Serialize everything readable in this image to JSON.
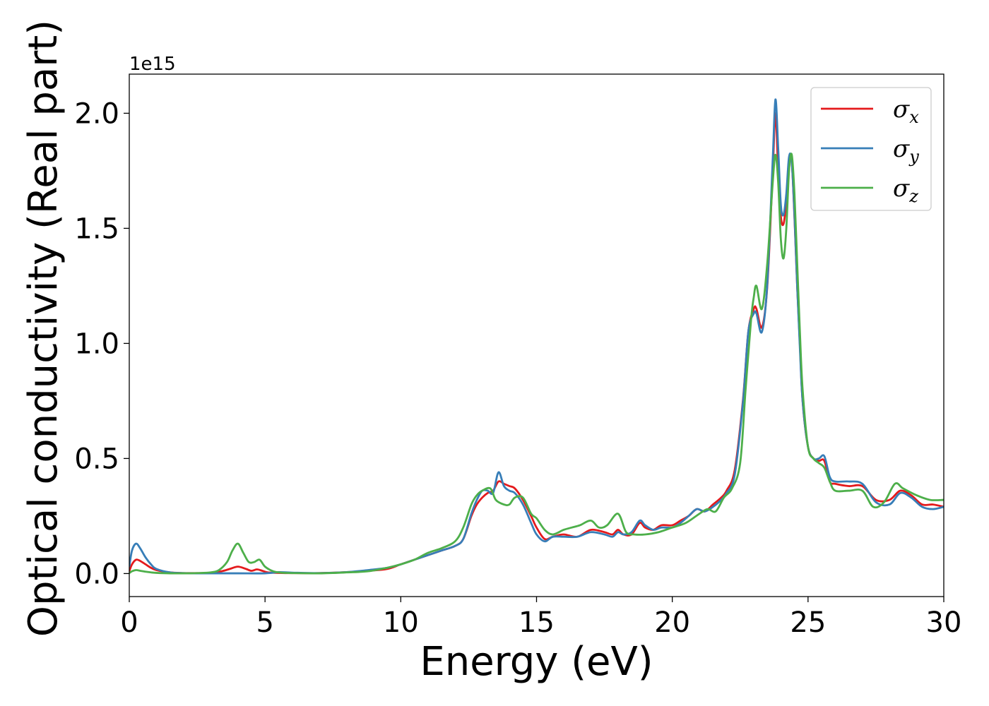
{
  "chart_data": {
    "type": "line",
    "xlabel": "Energy (eV)",
    "ylabel": "Optical conductivity (Real part)",
    "y_offset_text": "1e15",
    "xlim": [
      0,
      30
    ],
    "ylim": [
      -0.1,
      2.17
    ],
    "x_ticks": [
      0,
      5,
      10,
      15,
      20,
      25,
      30
    ],
    "x_tick_labels": [
      "0",
      "5",
      "10",
      "15",
      "20",
      "25",
      "30"
    ],
    "y_ticks": [
      0.0,
      0.5,
      1.0,
      1.5,
      2.0
    ],
    "y_tick_labels": [
      "0.0",
      "0.5",
      "1.0",
      "1.5",
      "2.0"
    ],
    "grid": false,
    "legend_position": "top-right",
    "series": [
      {
        "name": "σ",
        "subscript": "x",
        "color": "#e41a1c",
        "x": [
          0,
          0.1,
          0.25,
          0.4,
          0.6,
          0.8,
          1.0,
          1.5,
          2.0,
          2.5,
          3.0,
          3.4,
          3.7,
          4.0,
          4.3,
          4.5,
          4.7,
          4.9,
          5.1,
          5.5,
          6.0,
          7.0,
          8.0,
          8.8,
          9.5,
          10.0,
          10.5,
          11.0,
          11.5,
          12.0,
          12.3,
          12.6,
          12.8,
          13.0,
          13.2,
          13.4,
          13.6,
          13.8,
          14.0,
          14.2,
          14.5,
          14.8,
          15.0,
          15.3,
          15.6,
          16.0,
          16.5,
          17.0,
          17.5,
          17.8,
          18.0,
          18.2,
          18.5,
          18.8,
          19.0,
          19.3,
          19.6,
          20.0,
          20.3,
          20.6,
          20.9,
          21.2,
          21.5,
          21.8,
          22.0,
          22.3,
          22.6,
          22.8,
          23.0,
          23.1,
          23.3,
          23.5,
          23.7,
          23.8,
          23.9,
          24.0,
          24.1,
          24.2,
          24.3,
          24.4,
          24.5,
          24.6,
          24.7,
          24.8,
          25.0,
          25.2,
          25.4,
          25.6,
          25.8,
          26.0,
          26.5,
          27.0,
          27.5,
          28.0,
          28.4,
          28.8,
          29.2,
          29.6,
          30.0
        ],
        "y": [
          0.01,
          0.04,
          0.06,
          0.055,
          0.04,
          0.025,
          0.015,
          0.005,
          0.002,
          0.002,
          0.003,
          0.01,
          0.02,
          0.03,
          0.02,
          0.012,
          0.018,
          0.012,
          0.005,
          0.003,
          0.002,
          0.002,
          0.006,
          0.012,
          0.02,
          0.04,
          0.06,
          0.08,
          0.1,
          0.12,
          0.15,
          0.25,
          0.3,
          0.33,
          0.35,
          0.36,
          0.4,
          0.39,
          0.38,
          0.37,
          0.32,
          0.25,
          0.2,
          0.15,
          0.16,
          0.17,
          0.16,
          0.19,
          0.18,
          0.17,
          0.19,
          0.17,
          0.17,
          0.22,
          0.2,
          0.19,
          0.21,
          0.21,
          0.23,
          0.25,
          0.28,
          0.27,
          0.3,
          0.33,
          0.36,
          0.45,
          0.75,
          1.05,
          1.15,
          1.15,
          1.07,
          1.25,
          1.75,
          2.0,
          1.75,
          1.55,
          1.52,
          1.62,
          1.8,
          1.79,
          1.55,
          1.25,
          1.0,
          0.75,
          0.55,
          0.5,
          0.49,
          0.49,
          0.4,
          0.39,
          0.38,
          0.38,
          0.32,
          0.32,
          0.36,
          0.34,
          0.3,
          0.3,
          0.29
        ]
      },
      {
        "name": "σ",
        "subscript": "y",
        "color": "#377eb8",
        "x": [
          0,
          0.1,
          0.25,
          0.4,
          0.6,
          0.8,
          1.0,
          1.5,
          2.0,
          2.5,
          3.0,
          4.0,
          5.0,
          5.5,
          6.0,
          7.0,
          8.0,
          8.8,
          9.5,
          10.0,
          10.5,
          11.0,
          11.5,
          12.0,
          12.3,
          12.6,
          12.8,
          13.0,
          13.2,
          13.4,
          13.6,
          13.8,
          14.0,
          14.2,
          14.5,
          14.8,
          15.0,
          15.3,
          15.6,
          16.0,
          16.5,
          17.0,
          17.5,
          17.8,
          18.0,
          18.2,
          18.5,
          18.8,
          19.0,
          19.3,
          19.6,
          20.0,
          20.3,
          20.6,
          20.9,
          21.2,
          21.5,
          21.8,
          22.0,
          22.3,
          22.6,
          22.8,
          23.0,
          23.1,
          23.3,
          23.5,
          23.7,
          23.8,
          23.9,
          24.0,
          24.1,
          24.2,
          24.3,
          24.4,
          24.5,
          24.6,
          24.7,
          24.8,
          25.0,
          25.2,
          25.4,
          25.6,
          25.8,
          26.0,
          26.5,
          27.0,
          27.5,
          28.0,
          28.4,
          28.8,
          29.2,
          29.6,
          30.0
        ],
        "y": [
          0.03,
          0.1,
          0.13,
          0.11,
          0.07,
          0.04,
          0.02,
          0.005,
          0.002,
          0.001,
          0.001,
          0.001,
          0.001,
          0.006,
          0.004,
          0.002,
          0.006,
          0.015,
          0.025,
          0.04,
          0.06,
          0.08,
          0.1,
          0.12,
          0.15,
          0.26,
          0.32,
          0.36,
          0.36,
          0.35,
          0.44,
          0.38,
          0.36,
          0.35,
          0.3,
          0.22,
          0.17,
          0.14,
          0.16,
          0.16,
          0.16,
          0.18,
          0.17,
          0.16,
          0.18,
          0.17,
          0.18,
          0.23,
          0.21,
          0.19,
          0.2,
          0.2,
          0.22,
          0.25,
          0.28,
          0.27,
          0.29,
          0.32,
          0.35,
          0.43,
          0.74,
          1.05,
          1.13,
          1.13,
          1.05,
          1.26,
          1.8,
          2.06,
          1.85,
          1.6,
          1.56,
          1.65,
          1.81,
          1.79,
          1.56,
          1.25,
          0.98,
          0.75,
          0.55,
          0.5,
          0.5,
          0.51,
          0.42,
          0.4,
          0.4,
          0.39,
          0.31,
          0.3,
          0.35,
          0.33,
          0.29,
          0.28,
          0.29
        ]
      },
      {
        "name": "σ",
        "subscript": "z",
        "color": "#4daf4a",
        "x": [
          0,
          0.1,
          0.25,
          0.4,
          0.6,
          0.8,
          1.0,
          1.5,
          2.0,
          2.5,
          3.0,
          3.3,
          3.6,
          3.8,
          4.0,
          4.2,
          4.4,
          4.6,
          4.8,
          5.0,
          5.3,
          5.6,
          6.0,
          7.0,
          8.0,
          8.8,
          9.5,
          10.0,
          10.5,
          11.0,
          11.5,
          12.0,
          12.3,
          12.6,
          12.8,
          13.0,
          13.3,
          13.5,
          13.8,
          14.0,
          14.2,
          14.5,
          14.8,
          15.0,
          15.3,
          15.6,
          16.0,
          16.3,
          16.6,
          17.0,
          17.3,
          17.6,
          18.0,
          18.3,
          18.6,
          19.0,
          19.5,
          20.0,
          20.5,
          21.0,
          21.3,
          21.6,
          21.9,
          22.2,
          22.5,
          22.7,
          22.9,
          23.0,
          23.1,
          23.3,
          23.5,
          23.7,
          23.8,
          23.9,
          24.0,
          24.1,
          24.2,
          24.3,
          24.4,
          24.5,
          24.6,
          24.7,
          24.8,
          25.0,
          25.2,
          25.4,
          25.6,
          25.8,
          26.0,
          26.5,
          27.0,
          27.4,
          27.8,
          28.2,
          28.5,
          29.0,
          29.5,
          30.0
        ],
        "y": [
          0.002,
          0.01,
          0.015,
          0.012,
          0.008,
          0.005,
          0.003,
          0.001,
          0.001,
          0.002,
          0.005,
          0.015,
          0.05,
          0.1,
          0.13,
          0.09,
          0.05,
          0.05,
          0.06,
          0.03,
          0.01,
          0.004,
          0.002,
          0.001,
          0.005,
          0.01,
          0.025,
          0.04,
          0.06,
          0.09,
          0.11,
          0.14,
          0.2,
          0.3,
          0.34,
          0.36,
          0.37,
          0.32,
          0.3,
          0.3,
          0.33,
          0.33,
          0.26,
          0.24,
          0.19,
          0.17,
          0.19,
          0.2,
          0.21,
          0.23,
          0.2,
          0.21,
          0.26,
          0.18,
          0.17,
          0.17,
          0.18,
          0.2,
          0.22,
          0.26,
          0.28,
          0.27,
          0.33,
          0.37,
          0.48,
          0.8,
          1.1,
          1.2,
          1.25,
          1.15,
          1.35,
          1.7,
          1.82,
          1.7,
          1.45,
          1.37,
          1.5,
          1.75,
          1.82,
          1.65,
          1.35,
          1.05,
          0.8,
          0.55,
          0.5,
          0.48,
          0.46,
          0.4,
          0.36,
          0.36,
          0.36,
          0.29,
          0.31,
          0.39,
          0.37,
          0.34,
          0.32,
          0.32
        ]
      }
    ]
  }
}
